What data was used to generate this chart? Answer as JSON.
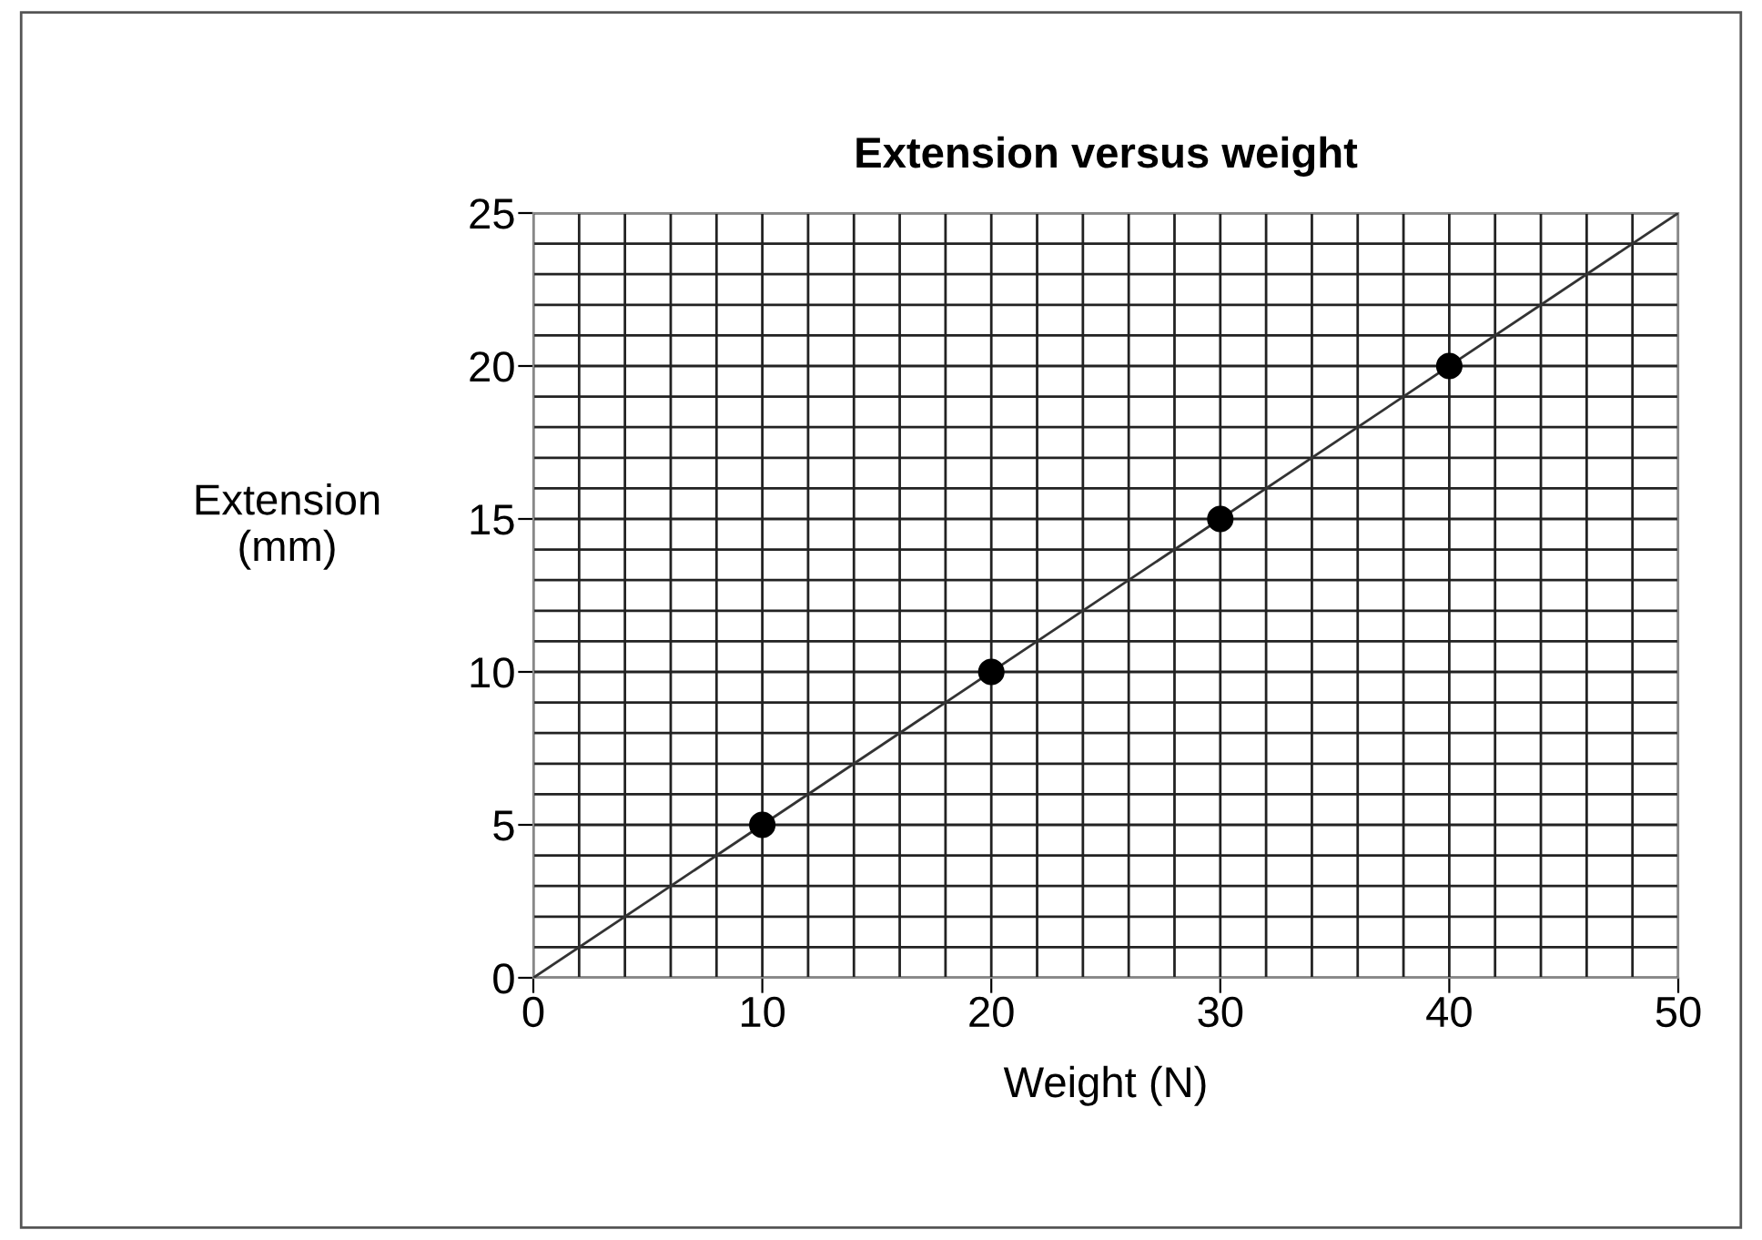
{
  "chart_data": {
    "type": "scatter",
    "title": "Extension versus weight",
    "xlabel": "Weight (N)",
    "ylabel": "Extension\n(mm)",
    "xlim": [
      0,
      50
    ],
    "ylim": [
      0,
      25
    ],
    "xticks": [
      0,
      {
        "value": 2,
        "label": null
      },
      {
        "value": 4,
        "label": null
      },
      {
        "value": 6,
        "label": null
      },
      {
        "value": 8,
        "label": null
      },
      10,
      {
        "value": 12,
        "label": null
      },
      {
        "value": 14,
        "label": null
      },
      {
        "value": 16,
        "label": null
      },
      {
        "value": 18,
        "label": null
      },
      20,
      {
        "value": 22,
        "label": null
      },
      {
        "value": 24,
        "label": null
      },
      {
        "value": 26,
        "label": null
      },
      {
        "value": 28,
        "label": null
      },
      30,
      {
        "value": 32,
        "label": null
      },
      {
        "value": 34,
        "label": null
      },
      {
        "value": 36,
        "label": null
      },
      {
        "value": 38,
        "label": null
      },
      40,
      {
        "value": 42,
        "label": null
      },
      {
        "value": 44,
        "label": null
      },
      {
        "value": 46,
        "label": null
      },
      {
        "value": 48,
        "label": null
      },
      50
    ],
    "yticks": [
      0,
      {
        "value": 1,
        "label": null
      },
      {
        "value": 2,
        "label": null
      },
      {
        "value": 3,
        "label": null
      },
      {
        "value": 4,
        "label": null
      },
      5,
      {
        "value": 6,
        "label": null
      },
      {
        "value": 7,
        "label": null
      },
      {
        "value": 8,
        "label": null
      },
      {
        "value": 9,
        "label": null
      },
      10,
      {
        "value": 11,
        "label": null
      },
      {
        "value": 12,
        "label": null
      },
      {
        "value": 13,
        "label": null
      },
      {
        "value": 14,
        "label": null
      },
      15,
      {
        "value": 16,
        "label": null
      },
      {
        "value": 17,
        "label": null
      },
      {
        "value": 18,
        "label": null
      },
      {
        "value": 19,
        "label": null
      },
      20,
      {
        "value": 21,
        "label": null
      },
      {
        "value": 22,
        "label": null
      },
      {
        "value": 23,
        "label": null
      },
      {
        "value": 24,
        "label": null
      },
      25
    ],
    "grid": true,
    "marker": "circle",
    "series": [
      {
        "type": "line",
        "color": "#333333",
        "x": [
          0,
          50
        ],
        "values": [
          0,
          25
        ],
        "marker": "none"
      },
      {
        "color": "#000000",
        "x": [
          10,
          20,
          30,
          40
        ],
        "values": [
          5,
          10,
          15,
          20
        ]
      }
    ]
  }
}
